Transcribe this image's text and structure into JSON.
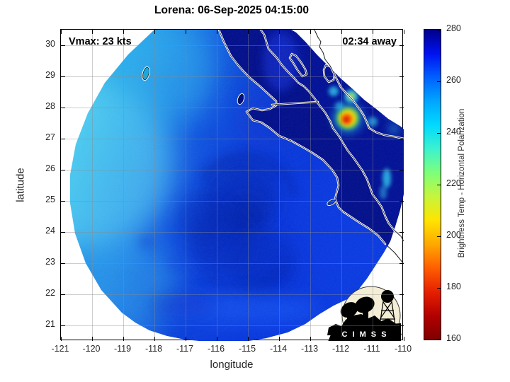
{
  "chart_data": {
    "type": "heatmap",
    "title": "Lorena: 06-Sep-2025 04:15:00",
    "xlabel": "longitude",
    "ylabel": "latitude",
    "xlim": [
      -121,
      -110
    ],
    "ylim": [
      20.5,
      30.5
    ],
    "xticks": [
      -121,
      -120,
      -119,
      -118,
      -117,
      -116,
      -115,
      -114,
      -113,
      -112,
      -111,
      -110
    ],
    "yticks": [
      21,
      22,
      23,
      24,
      25,
      26,
      27,
      28,
      29,
      30
    ],
    "grid": true,
    "annotations": {
      "vmax": "Vmax: 23 kts",
      "eta": "02:34 away"
    },
    "colorbar": {
      "label": "Brightness Temp - Horizontal Polarization",
      "min": 160,
      "max": 280,
      "ticks": [
        280,
        260,
        240,
        220,
        200,
        180,
        160
      ],
      "colors_top_to_bottom": [
        "#000089",
        "#0011f0",
        "#0060ff",
        "#00a6ff",
        "#00d9ff",
        "#3cf2cf",
        "#7dff7a",
        "#c6f53c",
        "#ffe400",
        "#ffa800",
        "#ff5e00",
        "#e62000",
        "#b30000",
        "#7f0000"
      ]
    },
    "storm": {
      "name": "Lorena",
      "timestamp": "06-Sep-2025 04:15:00",
      "vmax_kts": 23,
      "time_to_arrival": "02:34"
    },
    "swath": {
      "shape": "circular microwave scan footprint",
      "center_lonlat": [
        -115.4,
        25.8
      ],
      "radius_deg": 5.3
    },
    "features": [
      {
        "name": "ocean west sector",
        "approx_value_K": [
          240,
          252
        ],
        "appearance": "light cyan-blue"
      },
      {
        "name": "cloud field around Lorena center",
        "lonlat": [
          -115.3,
          24.9
        ],
        "approx_value_K": [
          262,
          272
        ],
        "appearance": "deep blue with darker swirls"
      },
      {
        "name": "Baja California peninsula and Gulf of California",
        "approx_value_K": [
          274,
          280
        ],
        "appearance": "dark navy, white-outlined coastline"
      },
      {
        "name": "convective cell near Sonora coast",
        "lonlat": [
          -111.9,
          27.7
        ],
        "approx_value_K": [
          180,
          215
        ],
        "appearance": "red core with yellow-green-cyan halo"
      },
      {
        "name": "secondary cells NW of main cell",
        "approx_value_K": [
          215,
          238
        ],
        "appearance": "cyan and yellow-green spots"
      },
      {
        "name": "region outside scan footprint",
        "appearance": "white, thin black coastline"
      }
    ]
  },
  "logo": {
    "name": "CIMSS",
    "banner_text": "C I M S S"
  }
}
